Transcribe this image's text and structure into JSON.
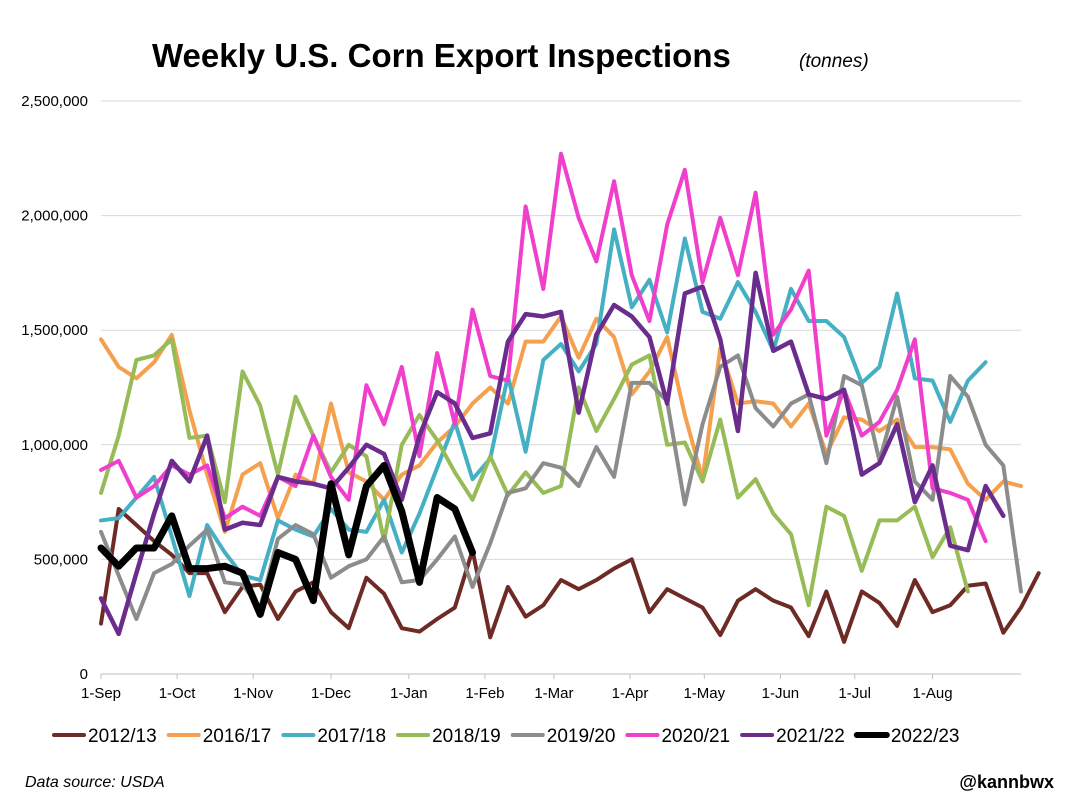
{
  "chart_data": {
    "type": "line",
    "title": "Weekly U.S. Corn Export Inspections",
    "subtitle": "(tonnes)",
    "ylim": [
      0,
      2500000
    ],
    "yticks": [
      0,
      500000,
      1000000,
      1500000,
      2000000,
      2500000
    ],
    "ytick_labels": [
      "0",
      "500,000",
      "1,000,000",
      "1,500,000",
      "2,000,000",
      "2,500,000"
    ],
    "xlim": [
      0,
      52
    ],
    "xticks": [
      0,
      4.3,
      8.6,
      13,
      17.4,
      21.7,
      25.6,
      29.9,
      34.1,
      38.4,
      42.6,
      47
    ],
    "xtick_labels": [
      "1-Sep",
      "1-Oct",
      "1-Nov",
      "1-Dec",
      "1-Jan",
      "1-Feb",
      "1-Mar",
      "1-Apr",
      "1-May",
      "1-Jun",
      "1-Jul",
      "1-Aug"
    ],
    "grid": "horizontal",
    "legend_position": "bottom",
    "series": [
      {
        "name": "2012/13",
        "color": "#6e2b26",
        "width": 4,
        "values": [
          220000,
          720000,
          650000,
          580000,
          520000,
          440000,
          440000,
          270000,
          380000,
          390000,
          240000,
          360000,
          400000,
          270000,
          200000,
          420000,
          350000,
          200000,
          185000,
          240000,
          290000,
          540000,
          160000,
          380000,
          250000,
          300000,
          410000,
          370000,
          410000,
          460000,
          500000,
          270000,
          370000,
          330000,
          290000,
          170000,
          320000,
          370000,
          320000,
          290000,
          165000,
          360000,
          140000,
          360000,
          310000,
          210000,
          410000,
          270000,
          300000,
          385000,
          395000,
          180000,
          290000,
          440000
        ]
      },
      {
        "name": "2016/17",
        "color": "#f4a04f",
        "width": 4,
        "values": [
          1460000,
          1340000,
          1290000,
          1360000,
          1480000,
          1150000,
          870000,
          620000,
          870000,
          920000,
          680000,
          870000,
          830000,
          1180000,
          880000,
          840000,
          760000,
          870000,
          910000,
          1010000,
          1080000,
          1180000,
          1250000,
          1180000,
          1450000,
          1450000,
          1560000,
          1380000,
          1550000,
          1470000,
          1220000,
          1320000,
          1470000,
          1130000,
          850000,
          1420000,
          1180000,
          1190000,
          1180000,
          1080000,
          1180000,
          960000,
          1120000,
          1110000,
          1060000,
          1110000,
          990000,
          990000,
          980000,
          830000,
          760000,
          840000,
          820000
        ]
      },
      {
        "name": "2017/18",
        "color": "#45b0c4",
        "width": 4,
        "values": [
          670000,
          680000,
          770000,
          860000,
          600000,
          340000,
          650000,
          530000,
          430000,
          410000,
          670000,
          630000,
          600000,
          720000,
          630000,
          620000,
          760000,
          530000,
          700000,
          900000,
          1100000,
          850000,
          940000,
          1300000,
          970000,
          1370000,
          1440000,
          1320000,
          1440000,
          1940000,
          1600000,
          1720000,
          1490000,
          1900000,
          1580000,
          1550000,
          1710000,
          1580000,
          1410000,
          1680000,
          1540000,
          1540000,
          1470000,
          1270000,
          1340000,
          1660000,
          1290000,
          1280000,
          1100000,
          1280000,
          1360000
        ]
      },
      {
        "name": "2018/19",
        "color": "#97bb57",
        "width": 4,
        "values": [
          790000,
          1040000,
          1370000,
          1390000,
          1460000,
          1030000,
          1040000,
          750000,
          1320000,
          1170000,
          870000,
          1210000,
          1040000,
          880000,
          1000000,
          950000,
          580000,
          1000000,
          1130000,
          1020000,
          880000,
          760000,
          950000,
          780000,
          880000,
          790000,
          820000,
          1250000,
          1060000,
          1200000,
          1350000,
          1390000,
          1000000,
          1010000,
          840000,
          1110000,
          770000,
          850000,
          700000,
          610000,
          300000,
          730000,
          690000,
          450000,
          670000,
          670000,
          730000,
          510000,
          640000,
          360000
        ]
      },
      {
        "name": "2019/20",
        "color": "#8c8c8c",
        "width": 4,
        "values": [
          620000,
          430000,
          240000,
          440000,
          480000,
          560000,
          630000,
          400000,
          390000,
          290000,
          590000,
          650000,
          610000,
          420000,
          470000,
          500000,
          600000,
          400000,
          410000,
          500000,
          600000,
          380000,
          570000,
          790000,
          810000,
          920000,
          900000,
          820000,
          990000,
          860000,
          1270000,
          1270000,
          1190000,
          740000,
          1090000,
          1340000,
          1390000,
          1160000,
          1080000,
          1180000,
          1220000,
          920000,
          1300000,
          1260000,
          930000,
          1210000,
          840000,
          760000,
          1300000,
          1210000,
          1000000,
          910000,
          360000
        ]
      },
      {
        "name": "2020/21",
        "color": "#f03fcc",
        "width": 4,
        "values": [
          890000,
          930000,
          770000,
          820000,
          910000,
          870000,
          910000,
          680000,
          730000,
          690000,
          860000,
          820000,
          1040000,
          860000,
          760000,
          1260000,
          1090000,
          1340000,
          950000,
          1400000,
          1090000,
          1590000,
          1300000,
          1280000,
          2040000,
          1680000,
          2270000,
          1990000,
          1800000,
          2150000,
          1740000,
          1540000,
          1960000,
          2200000,
          1710000,
          1990000,
          1740000,
          2100000,
          1480000,
          1590000,
          1760000,
          1040000,
          1240000,
          1040000,
          1100000,
          1240000,
          1460000,
          810000,
          790000,
          760000,
          580000
        ]
      },
      {
        "name": "2021/22",
        "color": "#6a2d8d",
        "width": 4.5,
        "values": [
          330000,
          175000,
          440000,
          700000,
          930000,
          840000,
          1040000,
          630000,
          660000,
          650000,
          860000,
          840000,
          830000,
          810000,
          900000,
          1000000,
          960000,
          760000,
          1040000,
          1230000,
          1180000,
          1030000,
          1050000,
          1450000,
          1570000,
          1560000,
          1580000,
          1140000,
          1480000,
          1610000,
          1560000,
          1470000,
          1180000,
          1660000,
          1690000,
          1460000,
          1060000,
          1750000,
          1410000,
          1450000,
          1220000,
          1200000,
          1240000,
          870000,
          920000,
          1090000,
          750000,
          910000,
          560000,
          540000,
          820000,
          690000
        ]
      },
      {
        "name": "2022/23",
        "color": "#000000",
        "width": 7,
        "values": [
          550000,
          470000,
          550000,
          550000,
          690000,
          460000,
          460000,
          470000,
          440000,
          260000,
          530000,
          500000,
          320000,
          830000,
          520000,
          820000,
          910000,
          710000,
          400000,
          770000,
          720000,
          530000
        ]
      }
    ]
  },
  "footer": {
    "source": "Data source: USDA",
    "handle": "@kannbwx"
  }
}
